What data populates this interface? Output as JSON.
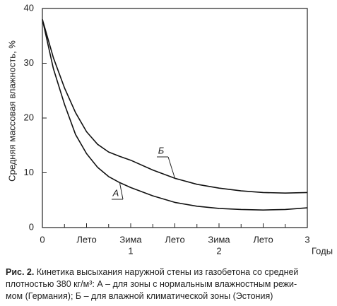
{
  "chart_data": {
    "type": "line",
    "ylabel": "Средняя массовая влажность, %",
    "xlabel": "Годы",
    "xlim": [
      0,
      3
    ],
    "ylim": [
      0,
      40
    ],
    "yticks": [
      0,
      10,
      20,
      30,
      40
    ],
    "xticks": [
      0,
      {
        "value": 0.5,
        "label": "Лето"
      },
      {
        "value": 1,
        "label": "Зима",
        "label2": "1"
      },
      {
        "value": 1.5,
        "label": "Лето"
      },
      {
        "value": 2,
        "label": "Зима",
        "label2": "2"
      },
      {
        "value": 2.5,
        "label": "Лето"
      },
      3
    ],
    "minor_xticks": [
      0.25,
      0.75,
      1.25,
      1.75,
      2.25,
      2.75
    ],
    "x": [
      0,
      0.125,
      0.25,
      0.375,
      0.5,
      0.625,
      0.75,
      0.875,
      1,
      1.25,
      1.5,
      1.75,
      2,
      2.25,
      2.5,
      2.75,
      3
    ],
    "series": [
      {
        "name": "А",
        "color": "#111111",
        "values": [
          38,
          29,
          22.5,
          17,
          13.5,
          11,
          9.3,
          8.2,
          7.3,
          5.8,
          4.6,
          3.9,
          3.5,
          3.3,
          3.2,
          3.3,
          3.6
        ]
      },
      {
        "name": "Б",
        "color": "#111111",
        "values": [
          38,
          31,
          25.5,
          21,
          17.5,
          15.2,
          13.8,
          13,
          12.3,
          10.5,
          9,
          7.9,
          7.2,
          6.7,
          6.4,
          6.3,
          6.4
        ]
      }
    ],
    "caption": {
      "label": "Рис. 2.",
      "lines": [
        "Кинетика высыхания наружной стены из газобетона со средней",
        "плотностью 380 кг/м³: А – для зоны с нормальным влажностным режи-",
        "мом (Германия); Б – для влажной климатической зоны (Эстония)"
      ]
    }
  }
}
